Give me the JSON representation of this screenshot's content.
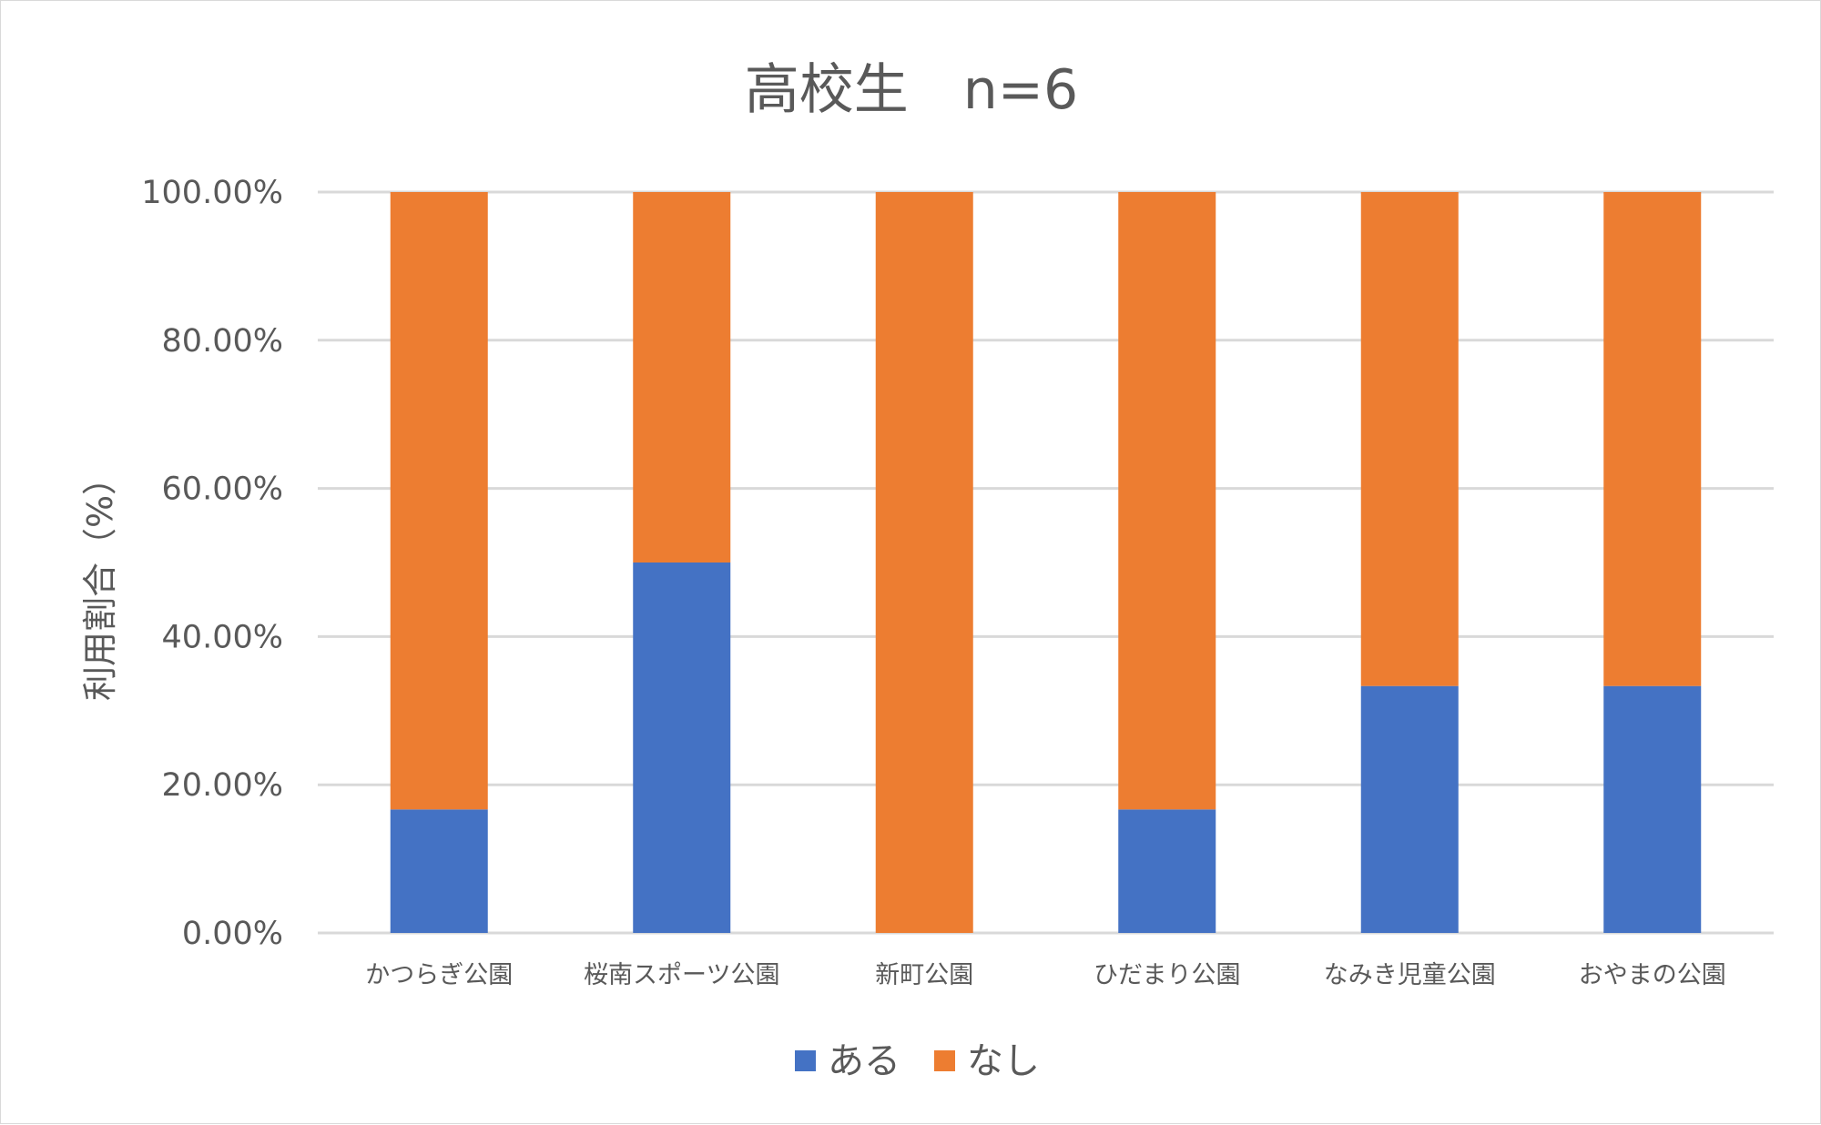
{
  "chart_data": {
    "type": "bar",
    "stacked": true,
    "title": "高校生　n=6",
    "xlabel": "",
    "ylabel": "利用割合（%）",
    "categories": [
      "かつらぎ公園",
      "桜南スポーツ公園",
      "新町公園",
      "ひだまり公園",
      "なみき児童公園",
      "おやまの公園"
    ],
    "series": [
      {
        "name": "ある",
        "color": "#4472C4",
        "values": [
          16.67,
          50.0,
          0.0,
          16.67,
          33.33,
          33.33
        ]
      },
      {
        "name": "なし",
        "color": "#ED7D31",
        "values": [
          83.33,
          50.0,
          100.0,
          83.33,
          66.67,
          66.67
        ]
      }
    ],
    "ylim": [
      0,
      100
    ],
    "yticks": [
      "0.00%",
      "20.00%",
      "40.00%",
      "60.00%",
      "80.00%",
      "100.00%"
    ],
    "ytick_values": [
      0,
      20,
      40,
      60,
      80,
      100
    ],
    "grid": true,
    "legend_position": "bottom",
    "gridline_color": "#d9d9d9"
  }
}
